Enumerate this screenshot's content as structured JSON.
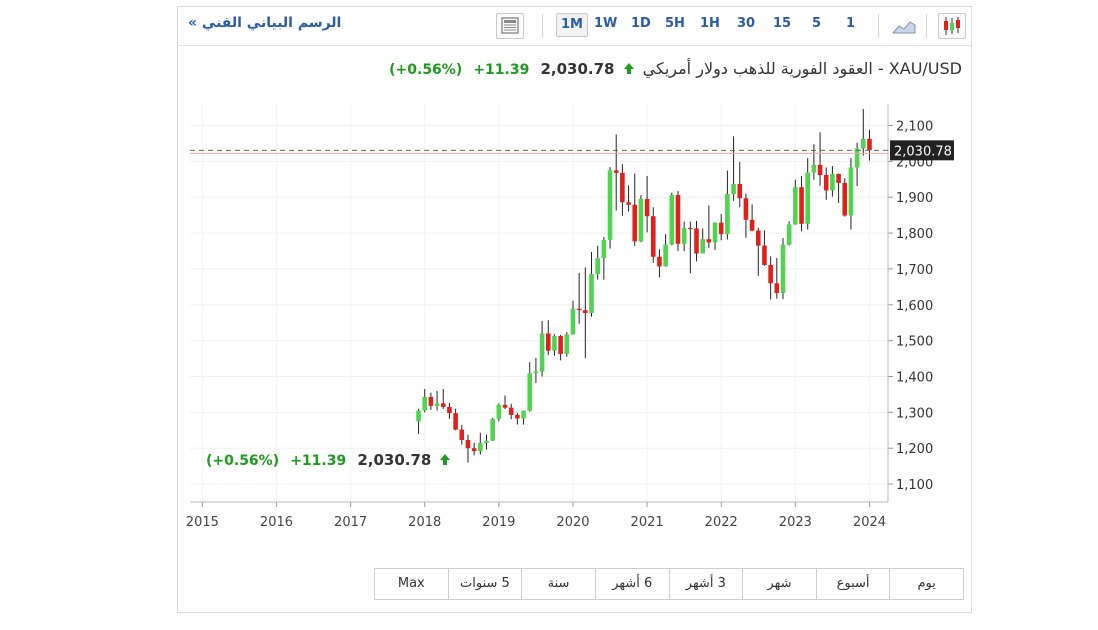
{
  "toolbar": {
    "chart_link": "الرسم البياني الفني »",
    "timeframes": [
      "1M",
      "1W",
      "1D",
      "5H",
      "1H",
      "30",
      "15",
      "5",
      "1"
    ],
    "active_timeframe": "1M"
  },
  "header": {
    "instrument": "XAU/USD - العقود الفورية للذهب دولار أمريكي",
    "price": "2,030.78",
    "change": "+11.39",
    "change_pct": "(+0.56%)"
  },
  "overlay": {
    "price": "2,030.78",
    "change": "+11.39",
    "change_pct": "(+0.56%)"
  },
  "range_buttons": [
    "Max",
    "5 سنوات",
    "سنة",
    "6 أشهر",
    "3 أشهر",
    "شهر",
    "أسبوع",
    "يوم"
  ],
  "colors": {
    "up": "#4fd44f",
    "down": "#e0201b",
    "positive_text": "#1e9a1e",
    "link": "#2a5ca8"
  },
  "chart_data": {
    "type": "candlestick",
    "x_axis_labels": [
      "2015",
      "2016",
      "2017",
      "2018",
      "2019",
      "2020",
      "2021",
      "2022",
      "2023",
      "2024"
    ],
    "y_ticks": [
      1100,
      1200,
      1300,
      1400,
      1500,
      1600,
      1700,
      1800,
      1900,
      2000,
      2100
    ],
    "y_tick_labels": [
      "1,100",
      "1,200",
      "1,300",
      "1,400",
      "1,500",
      "1,600",
      "1,700",
      "1,800",
      "1,900",
      "2,000",
      "2,100"
    ],
    "ylim": [
      1050,
      2160
    ],
    "x_range": [
      "2014-11",
      "2024-04"
    ],
    "grid": true,
    "last_price_label": "2,030.78",
    "last_price": 2030.78,
    "candles": [
      {
        "t": "2017-12",
        "o": 1275,
        "h": 1310,
        "l": 1240,
        "c": 1305
      },
      {
        "t": "2018-01",
        "o": 1305,
        "h": 1365,
        "l": 1300,
        "c": 1343
      },
      {
        "t": "2018-02",
        "o": 1343,
        "h": 1355,
        "l": 1307,
        "c": 1318
      },
      {
        "t": "2018-03",
        "o": 1318,
        "h": 1360,
        "l": 1305,
        "c": 1325
      },
      {
        "t": "2018-04",
        "o": 1325,
        "h": 1365,
        "l": 1310,
        "c": 1315
      },
      {
        "t": "2018-05",
        "o": 1315,
        "h": 1326,
        "l": 1282,
        "c": 1298
      },
      {
        "t": "2018-06",
        "o": 1298,
        "h": 1310,
        "l": 1250,
        "c": 1252
      },
      {
        "t": "2018-07",
        "o": 1252,
        "h": 1265,
        "l": 1210,
        "c": 1223
      },
      {
        "t": "2018-08",
        "o": 1223,
        "h": 1238,
        "l": 1160,
        "c": 1200
      },
      {
        "t": "2018-09",
        "o": 1200,
        "h": 1215,
        "l": 1180,
        "c": 1192
      },
      {
        "t": "2018-10",
        "o": 1192,
        "h": 1243,
        "l": 1182,
        "c": 1215
      },
      {
        "t": "2018-11",
        "o": 1215,
        "h": 1238,
        "l": 1196,
        "c": 1221
      },
      {
        "t": "2018-12",
        "o": 1221,
        "h": 1285,
        "l": 1220,
        "c": 1282
      },
      {
        "t": "2019-01",
        "o": 1282,
        "h": 1325,
        "l": 1275,
        "c": 1321
      },
      {
        "t": "2019-02",
        "o": 1321,
        "h": 1347,
        "l": 1309,
        "c": 1313
      },
      {
        "t": "2019-03",
        "o": 1313,
        "h": 1324,
        "l": 1281,
        "c": 1293
      },
      {
        "t": "2019-04",
        "o": 1293,
        "h": 1298,
        "l": 1266,
        "c": 1283
      },
      {
        "t": "2019-05",
        "o": 1283,
        "h": 1305,
        "l": 1266,
        "c": 1305
      },
      {
        "t": "2019-06",
        "o": 1305,
        "h": 1440,
        "l": 1302,
        "c": 1409
      },
      {
        "t": "2019-07",
        "o": 1409,
        "h": 1452,
        "l": 1382,
        "c": 1414
      },
      {
        "t": "2019-08",
        "o": 1414,
        "h": 1555,
        "l": 1400,
        "c": 1520
      },
      {
        "t": "2019-09",
        "o": 1520,
        "h": 1557,
        "l": 1460,
        "c": 1472
      },
      {
        "t": "2019-10",
        "o": 1472,
        "h": 1518,
        "l": 1458,
        "c": 1513
      },
      {
        "t": "2019-11",
        "o": 1513,
        "h": 1516,
        "l": 1445,
        "c": 1463
      },
      {
        "t": "2019-12",
        "o": 1463,
        "h": 1524,
        "l": 1455,
        "c": 1517
      },
      {
        "t": "2020-01",
        "o": 1517,
        "h": 1611,
        "l": 1517,
        "c": 1589
      },
      {
        "t": "2020-02",
        "o": 1589,
        "h": 1689,
        "l": 1547,
        "c": 1585
      },
      {
        "t": "2020-03",
        "o": 1585,
        "h": 1704,
        "l": 1451,
        "c": 1577
      },
      {
        "t": "2020-04",
        "o": 1577,
        "h": 1747,
        "l": 1567,
        "c": 1686
      },
      {
        "t": "2020-05",
        "o": 1686,
        "h": 1765,
        "l": 1670,
        "c": 1730
      },
      {
        "t": "2020-06",
        "o": 1730,
        "h": 1789,
        "l": 1670,
        "c": 1781
      },
      {
        "t": "2020-07",
        "o": 1781,
        "h": 1984,
        "l": 1757,
        "c": 1975
      },
      {
        "t": "2020-08",
        "o": 1975,
        "h": 2075,
        "l": 1863,
        "c": 1968
      },
      {
        "t": "2020-09",
        "o": 1968,
        "h": 1992,
        "l": 1848,
        "c": 1886
      },
      {
        "t": "2020-10",
        "o": 1886,
        "h": 1933,
        "l": 1860,
        "c": 1879
      },
      {
        "t": "2020-11",
        "o": 1879,
        "h": 1966,
        "l": 1764,
        "c": 1777
      },
      {
        "t": "2020-12",
        "o": 1777,
        "h": 1906,
        "l": 1775,
        "c": 1895
      },
      {
        "t": "2021-01",
        "o": 1895,
        "h": 1959,
        "l": 1802,
        "c": 1847
      },
      {
        "t": "2021-02",
        "o": 1847,
        "h": 1872,
        "l": 1717,
        "c": 1734
      },
      {
        "t": "2021-03",
        "o": 1734,
        "h": 1755,
        "l": 1677,
        "c": 1707
      },
      {
        "t": "2021-04",
        "o": 1707,
        "h": 1797,
        "l": 1706,
        "c": 1768
      },
      {
        "t": "2021-05",
        "o": 1768,
        "h": 1913,
        "l": 1766,
        "c": 1906
      },
      {
        "t": "2021-06",
        "o": 1906,
        "h": 1917,
        "l": 1750,
        "c": 1770
      },
      {
        "t": "2021-07",
        "o": 1770,
        "h": 1832,
        "l": 1750,
        "c": 1814
      },
      {
        "t": "2021-08",
        "o": 1814,
        "h": 1832,
        "l": 1688,
        "c": 1813
      },
      {
        "t": "2021-09",
        "o": 1813,
        "h": 1834,
        "l": 1721,
        "c": 1743
      },
      {
        "t": "2021-10",
        "o": 1743,
        "h": 1813,
        "l": 1746,
        "c": 1783
      },
      {
        "t": "2021-11",
        "o": 1783,
        "h": 1877,
        "l": 1759,
        "c": 1774
      },
      {
        "t": "2021-12",
        "o": 1774,
        "h": 1830,
        "l": 1753,
        "c": 1829
      },
      {
        "t": "2022-01",
        "o": 1829,
        "h": 1853,
        "l": 1780,
        "c": 1797
      },
      {
        "t": "2022-02",
        "o": 1797,
        "h": 1974,
        "l": 1782,
        "c": 1909
      },
      {
        "t": "2022-03",
        "o": 1909,
        "h": 2070,
        "l": 1890,
        "c": 1937
      },
      {
        "t": "2022-04",
        "o": 1937,
        "h": 1998,
        "l": 1872,
        "c": 1897
      },
      {
        "t": "2022-05",
        "o": 1897,
        "h": 1910,
        "l": 1787,
        "c": 1837
      },
      {
        "t": "2022-06",
        "o": 1837,
        "h": 1880,
        "l": 1805,
        "c": 1807
      },
      {
        "t": "2022-07",
        "o": 1807,
        "h": 1815,
        "l": 1681,
        "c": 1765
      },
      {
        "t": "2022-08",
        "o": 1765,
        "h": 1808,
        "l": 1709,
        "c": 1711
      },
      {
        "t": "2022-09",
        "o": 1711,
        "h": 1735,
        "l": 1615,
        "c": 1660
      },
      {
        "t": "2022-10",
        "o": 1660,
        "h": 1730,
        "l": 1617,
        "c": 1633
      },
      {
        "t": "2022-11",
        "o": 1633,
        "h": 1786,
        "l": 1616,
        "c": 1768
      },
      {
        "t": "2022-12",
        "o": 1768,
        "h": 1833,
        "l": 1765,
        "c": 1824
      },
      {
        "t": "2023-01",
        "o": 1824,
        "h": 1949,
        "l": 1823,
        "c": 1928
      },
      {
        "t": "2023-02",
        "o": 1928,
        "h": 1959,
        "l": 1805,
        "c": 1826
      },
      {
        "t": "2023-03",
        "o": 1826,
        "h": 2009,
        "l": 1810,
        "c": 1969
      },
      {
        "t": "2023-04",
        "o": 1969,
        "h": 2048,
        "l": 1949,
        "c": 1990
      },
      {
        "t": "2023-05",
        "o": 1990,
        "h": 2081,
        "l": 1932,
        "c": 1962
      },
      {
        "t": "2023-06",
        "o": 1962,
        "h": 1983,
        "l": 1893,
        "c": 1919
      },
      {
        "t": "2023-07",
        "o": 1919,
        "h": 1987,
        "l": 1902,
        "c": 1965
      },
      {
        "t": "2023-08",
        "o": 1965,
        "h": 1966,
        "l": 1884,
        "c": 1940
      },
      {
        "t": "2023-09",
        "o": 1940,
        "h": 1953,
        "l": 1846,
        "c": 1849
      },
      {
        "t": "2023-10",
        "o": 1849,
        "h": 2009,
        "l": 1810,
        "c": 1983
      },
      {
        "t": "2023-11",
        "o": 1983,
        "h": 2052,
        "l": 1931,
        "c": 2036
      },
      {
        "t": "2023-12",
        "o": 2036,
        "h": 2146,
        "l": 2016,
        "c": 2063
      },
      {
        "t": "2024-01",
        "o": 2063,
        "h": 2088,
        "l": 2002,
        "c": 2031
      }
    ]
  }
}
